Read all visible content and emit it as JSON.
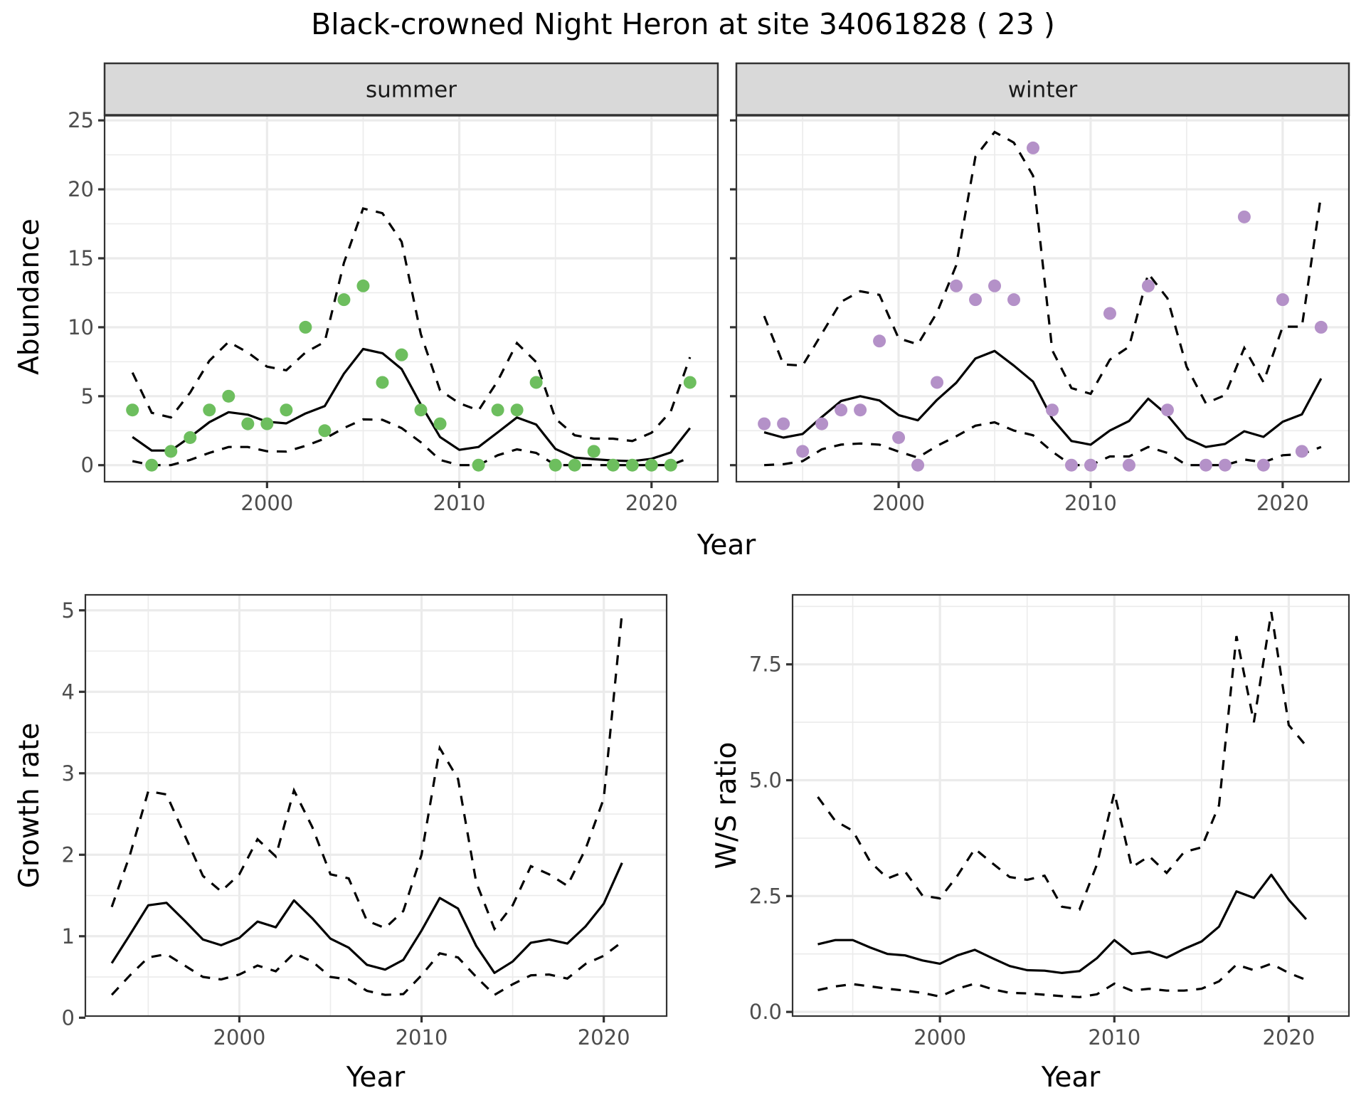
{
  "title": "Black-crowned Night Heron at site 34061828 ( 23 )",
  "colors": {
    "summer_points": "#6dbe5e",
    "winter_points": "#b491c8",
    "lines": "#000000"
  },
  "chart_data": [
    {
      "id": "summer",
      "type": "line",
      "facet_label": "summer",
      "xlabel": "Year",
      "ylabel": "Abundance",
      "xlim": [
        1991.55,
        2023.45
      ],
      "ylim": [
        -1.2,
        25.37
      ],
      "grid": true,
      "x_ticks": [
        2000,
        2010,
        2020
      ],
      "x_tick_labels": [
        "2000",
        "2010",
        "2020"
      ],
      "y_ticks": [
        0,
        5,
        10,
        15,
        20,
        25
      ],
      "y_tick_labels": [
        "0",
        "5",
        "10",
        "15",
        "20",
        "25"
      ],
      "points": {
        "name": "observed count",
        "x": [
          1993,
          1994,
          1995,
          1996,
          1997,
          1998,
          1999,
          2000,
          2001,
          2002,
          2003,
          2004,
          2005,
          2006,
          2007,
          2008,
          2009,
          2011,
          2012,
          2013,
          2014,
          2015,
          2016,
          2017,
          2018,
          2019,
          2020,
          2021,
          2022
        ],
        "y": [
          4,
          0,
          1,
          2,
          4,
          5,
          3,
          3,
          4,
          10,
          2.5,
          12,
          13,
          6,
          8,
          4,
          3,
          0,
          4,
          4,
          6,
          0,
          0,
          1,
          0,
          0,
          0,
          0,
          6
        ]
      },
      "x": [
        1993,
        1994,
        1995,
        1996,
        1997,
        1998,
        1999,
        2000,
        2001,
        2002,
        2003,
        2004,
        2005,
        2006,
        2007,
        2008,
        2009,
        2010,
        2011,
        2012,
        2013,
        2014,
        2015,
        2016,
        2017,
        2018,
        2019,
        2020,
        2021,
        2022
      ],
      "series": [
        {
          "name": "mean",
          "style": "solid",
          "values": [
            2.04,
            1.06,
            1.06,
            2.04,
            3.12,
            3.84,
            3.66,
            3.15,
            3.03,
            3.75,
            4.28,
            6.63,
            8.42,
            8.12,
            6.97,
            4.4,
            2.04,
            1.11,
            1.32,
            2.38,
            3.46,
            2.95,
            1.18,
            0.55,
            0.43,
            0.34,
            0.29,
            0.46,
            0.92,
            2.69
          ]
        },
        {
          "name": "upper",
          "style": "dashed",
          "values": [
            6.71,
            3.8,
            3.46,
            5.26,
            7.57,
            8.94,
            8.17,
            7.14,
            6.88,
            8.17,
            8.94,
            14.67,
            18.61,
            18.27,
            16.2,
            9.5,
            5.43,
            4.49,
            3.97,
            6.11,
            8.85,
            7.48,
            3.37,
            2.17,
            1.92,
            1.92,
            1.75,
            2.35,
            3.89,
            7.83
          ]
        },
        {
          "name": "lower",
          "style": "dashed",
          "values": [
            0.29,
            0,
            0,
            0.38,
            0.89,
            1.32,
            1.32,
            1.01,
            0.98,
            1.4,
            1.92,
            2.69,
            3.32,
            3.29,
            2.69,
            1.66,
            0.38,
            0,
            0,
            0.72,
            1.15,
            0.89,
            0,
            0,
            0,
            0,
            0,
            0,
            0,
            0.55
          ]
        }
      ]
    },
    {
      "id": "winter",
      "type": "line",
      "facet_label": "winter",
      "xlabel": "Year",
      "ylabel": "Abundance",
      "xlim": [
        1991.55,
        2023.45
      ],
      "ylim": [
        -1.2,
        25.37
      ],
      "grid": true,
      "x_ticks": [
        2000,
        2010,
        2020
      ],
      "x_tick_labels": [
        "2000",
        "2010",
        "2020"
      ],
      "y_ticks": [
        0,
        5,
        10,
        15,
        20,
        25
      ],
      "y_tick_labels": [],
      "points": {
        "name": "observed count",
        "x": [
          1993,
          1994,
          1995,
          1996,
          1997,
          1998,
          1999,
          2000,
          2001,
          2002,
          2003,
          2004,
          2005,
          2006,
          2007,
          2008,
          2009,
          2010,
          2011,
          2012,
          2013,
          2014,
          2016,
          2017,
          2018,
          2019,
          2020,
          2021,
          2022
        ],
        "y": [
          3,
          3,
          1,
          3,
          4,
          4,
          9,
          2,
          0,
          6,
          13,
          12,
          13,
          12,
          23,
          4,
          0,
          0,
          11,
          0,
          13,
          4,
          0,
          0,
          18,
          0,
          12,
          1,
          10
        ]
      },
      "x": [
        1993,
        1994,
        1995,
        1996,
        1997,
        1998,
        1999,
        2000,
        2001,
        2002,
        2003,
        2004,
        2005,
        2006,
        2007,
        2008,
        2009,
        2010,
        2011,
        2012,
        2013,
        2014,
        2015,
        2016,
        2017,
        2018,
        2019,
        2020,
        2021,
        2022
      ],
      "series": [
        {
          "name": "mean",
          "style": "solid",
          "values": [
            2.38,
            2.0,
            2.26,
            3.49,
            4.65,
            5.0,
            4.69,
            3.63,
            3.25,
            4.74,
            5.97,
            7.73,
            8.28,
            7.22,
            6.06,
            3.37,
            1.75,
            1.49,
            2.51,
            3.2,
            4.82,
            3.63,
            1.95,
            1.32,
            1.54,
            2.46,
            2.05,
            3.15,
            3.68,
            6.28
          ]
        },
        {
          "name": "upper",
          "style": "dashed",
          "values": [
            10.81,
            7.31,
            7.22,
            9.53,
            11.84,
            12.61,
            12.35,
            9.19,
            8.76,
            11.07,
            14.49,
            22.36,
            24.16,
            23.39,
            20.99,
            8.33,
            5.59,
            5.17,
            7.65,
            8.59,
            13.89,
            12.1,
            7.13,
            4.48,
            5.08,
            8.5,
            6.02,
            10.04,
            10.04,
            19.62
          ]
        },
        {
          "name": "lower",
          "style": "dashed",
          "values": [
            0,
            0.07,
            0.29,
            1.15,
            1.49,
            1.57,
            1.49,
            0.98,
            0.55,
            1.4,
            2.09,
            2.86,
            3.11,
            2.51,
            2.17,
            0.98,
            0,
            0,
            0.63,
            0.63,
            1.32,
            0.89,
            0,
            0,
            0,
            0.41,
            0.21,
            0.72,
            0.8,
            1.32
          ]
        }
      ]
    },
    {
      "id": "growth",
      "type": "line",
      "xlabel": "Year",
      "ylabel": "Growth rate",
      "xlim": [
        1991.55,
        2023.45
      ],
      "ylim": [
        0.02,
        5.19
      ],
      "grid": true,
      "x_ticks": [
        2000,
        2010,
        2020
      ],
      "x_tick_labels": [
        "2000",
        "2010",
        "2020"
      ],
      "y_ticks": [
        0,
        1,
        2,
        3,
        4,
        5
      ],
      "y_tick_labels": [
        "0",
        "1",
        "2",
        "3",
        "4",
        "5"
      ],
      "x": [
        1993,
        1994,
        1995,
        1996,
        1997,
        1998,
        1999,
        2000,
        2001,
        2002,
        2003,
        2004,
        2005,
        2006,
        2007,
        2008,
        2009,
        2010,
        2011,
        2012,
        2013,
        2014,
        2015,
        2016,
        2017,
        2018,
        2019,
        2020,
        2021
      ],
      "series": [
        {
          "name": "mean",
          "style": "solid",
          "values": [
            0.67,
            1.02,
            1.38,
            1.41,
            1.19,
            0.96,
            0.89,
            0.98,
            1.18,
            1.11,
            1.44,
            1.22,
            0.97,
            0.86,
            0.65,
            0.59,
            0.71,
            1.07,
            1.47,
            1.34,
            0.88,
            0.55,
            0.69,
            0.92,
            0.96,
            0.91,
            1.12,
            1.4,
            1.9
          ]
        },
        {
          "name": "upper",
          "style": "dashed",
          "values": [
            1.36,
            2.0,
            2.78,
            2.74,
            2.24,
            1.74,
            1.55,
            1.76,
            2.19,
            1.98,
            2.79,
            2.34,
            1.76,
            1.71,
            1.19,
            1.1,
            1.31,
            2.0,
            3.31,
            2.93,
            1.66,
            1.09,
            1.38,
            1.86,
            1.76,
            1.62,
            2.07,
            2.69,
            4.97
          ]
        },
        {
          "name": "lower",
          "style": "dashed",
          "values": [
            0.28,
            0.52,
            0.74,
            0.78,
            0.64,
            0.5,
            0.47,
            0.53,
            0.64,
            0.57,
            0.79,
            0.69,
            0.5,
            0.47,
            0.33,
            0.28,
            0.29,
            0.52,
            0.79,
            0.74,
            0.5,
            0.28,
            0.41,
            0.52,
            0.53,
            0.48,
            0.66,
            0.76,
            0.93
          ]
        }
      ]
    },
    {
      "id": "ws_ratio",
      "type": "line",
      "xlabel": "Year",
      "ylabel": "W/S ratio",
      "xlim": [
        1991.55,
        2023.45
      ],
      "ylim": [
        -0.09,
        9.0
      ],
      "grid": true,
      "x_ticks": [
        2000,
        2010,
        2020
      ],
      "x_tick_labels": [
        "2000",
        "2010",
        "2020"
      ],
      "y_ticks": [
        0,
        2.5,
        5,
        7.5
      ],
      "y_tick_labels": [
        "0.0",
        "2.5",
        "5.0",
        "7.5"
      ],
      "x": [
        1993,
        1994,
        1995,
        1996,
        1997,
        1998,
        1999,
        2000,
        2001,
        2002,
        2003,
        2004,
        2005,
        2006,
        2007,
        2008,
        2009,
        2010,
        2011,
        2012,
        2013,
        2014,
        2015,
        2016,
        2017,
        2018,
        2019,
        2020,
        2021
      ],
      "series": [
        {
          "name": "mean",
          "style": "solid",
          "values": [
            1.46,
            1.55,
            1.55,
            1.39,
            1.25,
            1.22,
            1.11,
            1.04,
            1.22,
            1.34,
            1.16,
            0.99,
            0.9,
            0.89,
            0.84,
            0.88,
            1.16,
            1.55,
            1.25,
            1.3,
            1.17,
            1.36,
            1.52,
            1.84,
            2.6,
            2.46,
            2.96,
            2.42,
            2.0
          ]
        },
        {
          "name": "upper",
          "style": "dashed",
          "values": [
            4.64,
            4.12,
            3.91,
            3.24,
            2.88,
            3.03,
            2.51,
            2.45,
            2.94,
            3.52,
            3.21,
            2.91,
            2.85,
            2.94,
            2.27,
            2.21,
            3.18,
            4.73,
            3.12,
            3.36,
            3.0,
            3.45,
            3.55,
            4.46,
            8.11,
            6.25,
            8.63,
            6.19,
            5.74
          ]
        },
        {
          "name": "lower",
          "style": "dashed",
          "values": [
            0.47,
            0.55,
            0.6,
            0.55,
            0.5,
            0.46,
            0.41,
            0.33,
            0.5,
            0.61,
            0.49,
            0.41,
            0.4,
            0.37,
            0.34,
            0.32,
            0.38,
            0.61,
            0.46,
            0.5,
            0.46,
            0.46,
            0.5,
            0.66,
            1.02,
            0.9,
            1.04,
            0.84,
            0.69
          ]
        }
      ]
    }
  ],
  "top_shared_xlabel": "Year"
}
